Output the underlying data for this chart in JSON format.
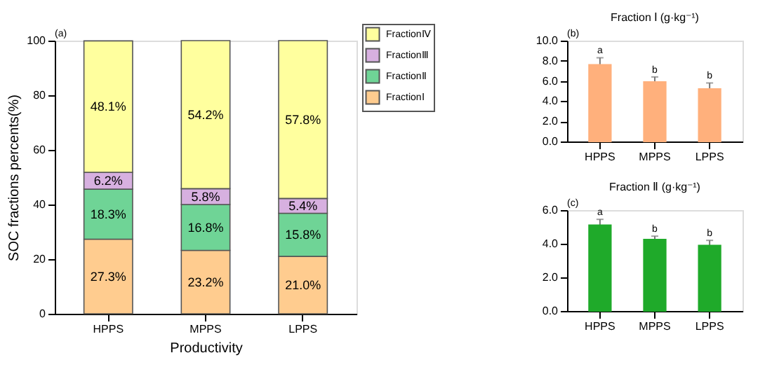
{
  "chart_data": [
    {
      "type": "bar",
      "stacked": true,
      "xlabel": "Productivity",
      "ylabel": "SOC fractions percents(%)",
      "categories": [
        "HPPS",
        "MPPS",
        "LPPS"
      ],
      "series": [
        {
          "name": "FractionⅠ",
          "color": "#ffcc8f",
          "values": [
            27.3,
            23.2,
            21.0
          ]
        },
        {
          "name": "FractionⅡ",
          "color": "#6fd496",
          "values": [
            18.3,
            16.8,
            15.8
          ]
        },
        {
          "name": "FractionⅢ",
          "color": "#d7b0e0",
          "values": [
            6.2,
            5.8,
            5.4
          ]
        },
        {
          "name": "FractionⅣ",
          "color": "#ffff9e",
          "values": [
            48.1,
            54.2,
            57.8
          ]
        }
      ],
      "value_labels": [
        [
          "27.3%",
          "23.2%",
          "21.0%"
        ],
        [
          "18.3%",
          "16.8%",
          "15.8%"
        ],
        [
          "6.2%",
          "5.8%",
          "5.4%"
        ],
        [
          "48.1%",
          "54.2%",
          "57.8%"
        ]
      ],
      "ylim": [
        0,
        100
      ],
      "yticks": [
        0,
        20,
        40,
        60,
        80,
        100
      ],
      "legend": "top right",
      "grid": false,
      "annotations": [
        "(a)"
      ]
    },
    {
      "type": "bar",
      "title": "Fraction Ⅰ (g·kg⁻¹)",
      "categories": [
        "HPPS",
        "MPPS",
        "LPPS"
      ],
      "values": [
        7.6,
        5.9,
        5.2
      ],
      "color": "#ffb07c",
      "errors": [
        0.7,
        0.5,
        0.6
      ],
      "ylim": [
        0,
        10
      ],
      "yticks": [
        {
          "value": 0,
          "label": "0.0"
        },
        {
          "value": 2,
          "label": "2.0"
        },
        {
          "value": 4,
          "label": "4.0"
        },
        {
          "value": 6,
          "label": "6.0"
        },
        {
          "value": 8,
          "label": "8.0"
        },
        {
          "value": 10,
          "label": "10.0"
        }
      ],
      "grid": false,
      "annotations": [
        "(b)",
        {
          "text": "a",
          "x": "HPPS",
          "y": 8.3
        },
        {
          "text": "b",
          "x": "MPPS",
          "y": 6.4
        },
        {
          "text": "b",
          "x": "LPPS",
          "y": 5.8
        }
      ]
    },
    {
      "type": "bar",
      "title": "Fraction Ⅱ (g·kg⁻¹)",
      "categories": [
        "HPPS",
        "MPPS",
        "LPPS"
      ],
      "values": [
        5.1,
        4.25,
        3.9
      ],
      "color": "#1faa2a",
      "errors": [
        0.35,
        0.2,
        0.3
      ],
      "ylim": [
        0,
        6
      ],
      "yticks": [
        {
          "value": 0,
          "label": "0.0"
        },
        {
          "value": 2,
          "label": "2.0"
        },
        {
          "value": 4,
          "label": "4.0"
        },
        {
          "value": 6,
          "label": "6.0"
        }
      ],
      "grid": false,
      "annotations": [
        "(c)",
        {
          "text": "a",
          "x": "HPPS",
          "y": 5.45
        },
        {
          "text": "b",
          "x": "MPPS",
          "y": 4.45
        },
        {
          "text": "b",
          "x": "LPPS",
          "y": 4.2
        }
      ]
    }
  ]
}
